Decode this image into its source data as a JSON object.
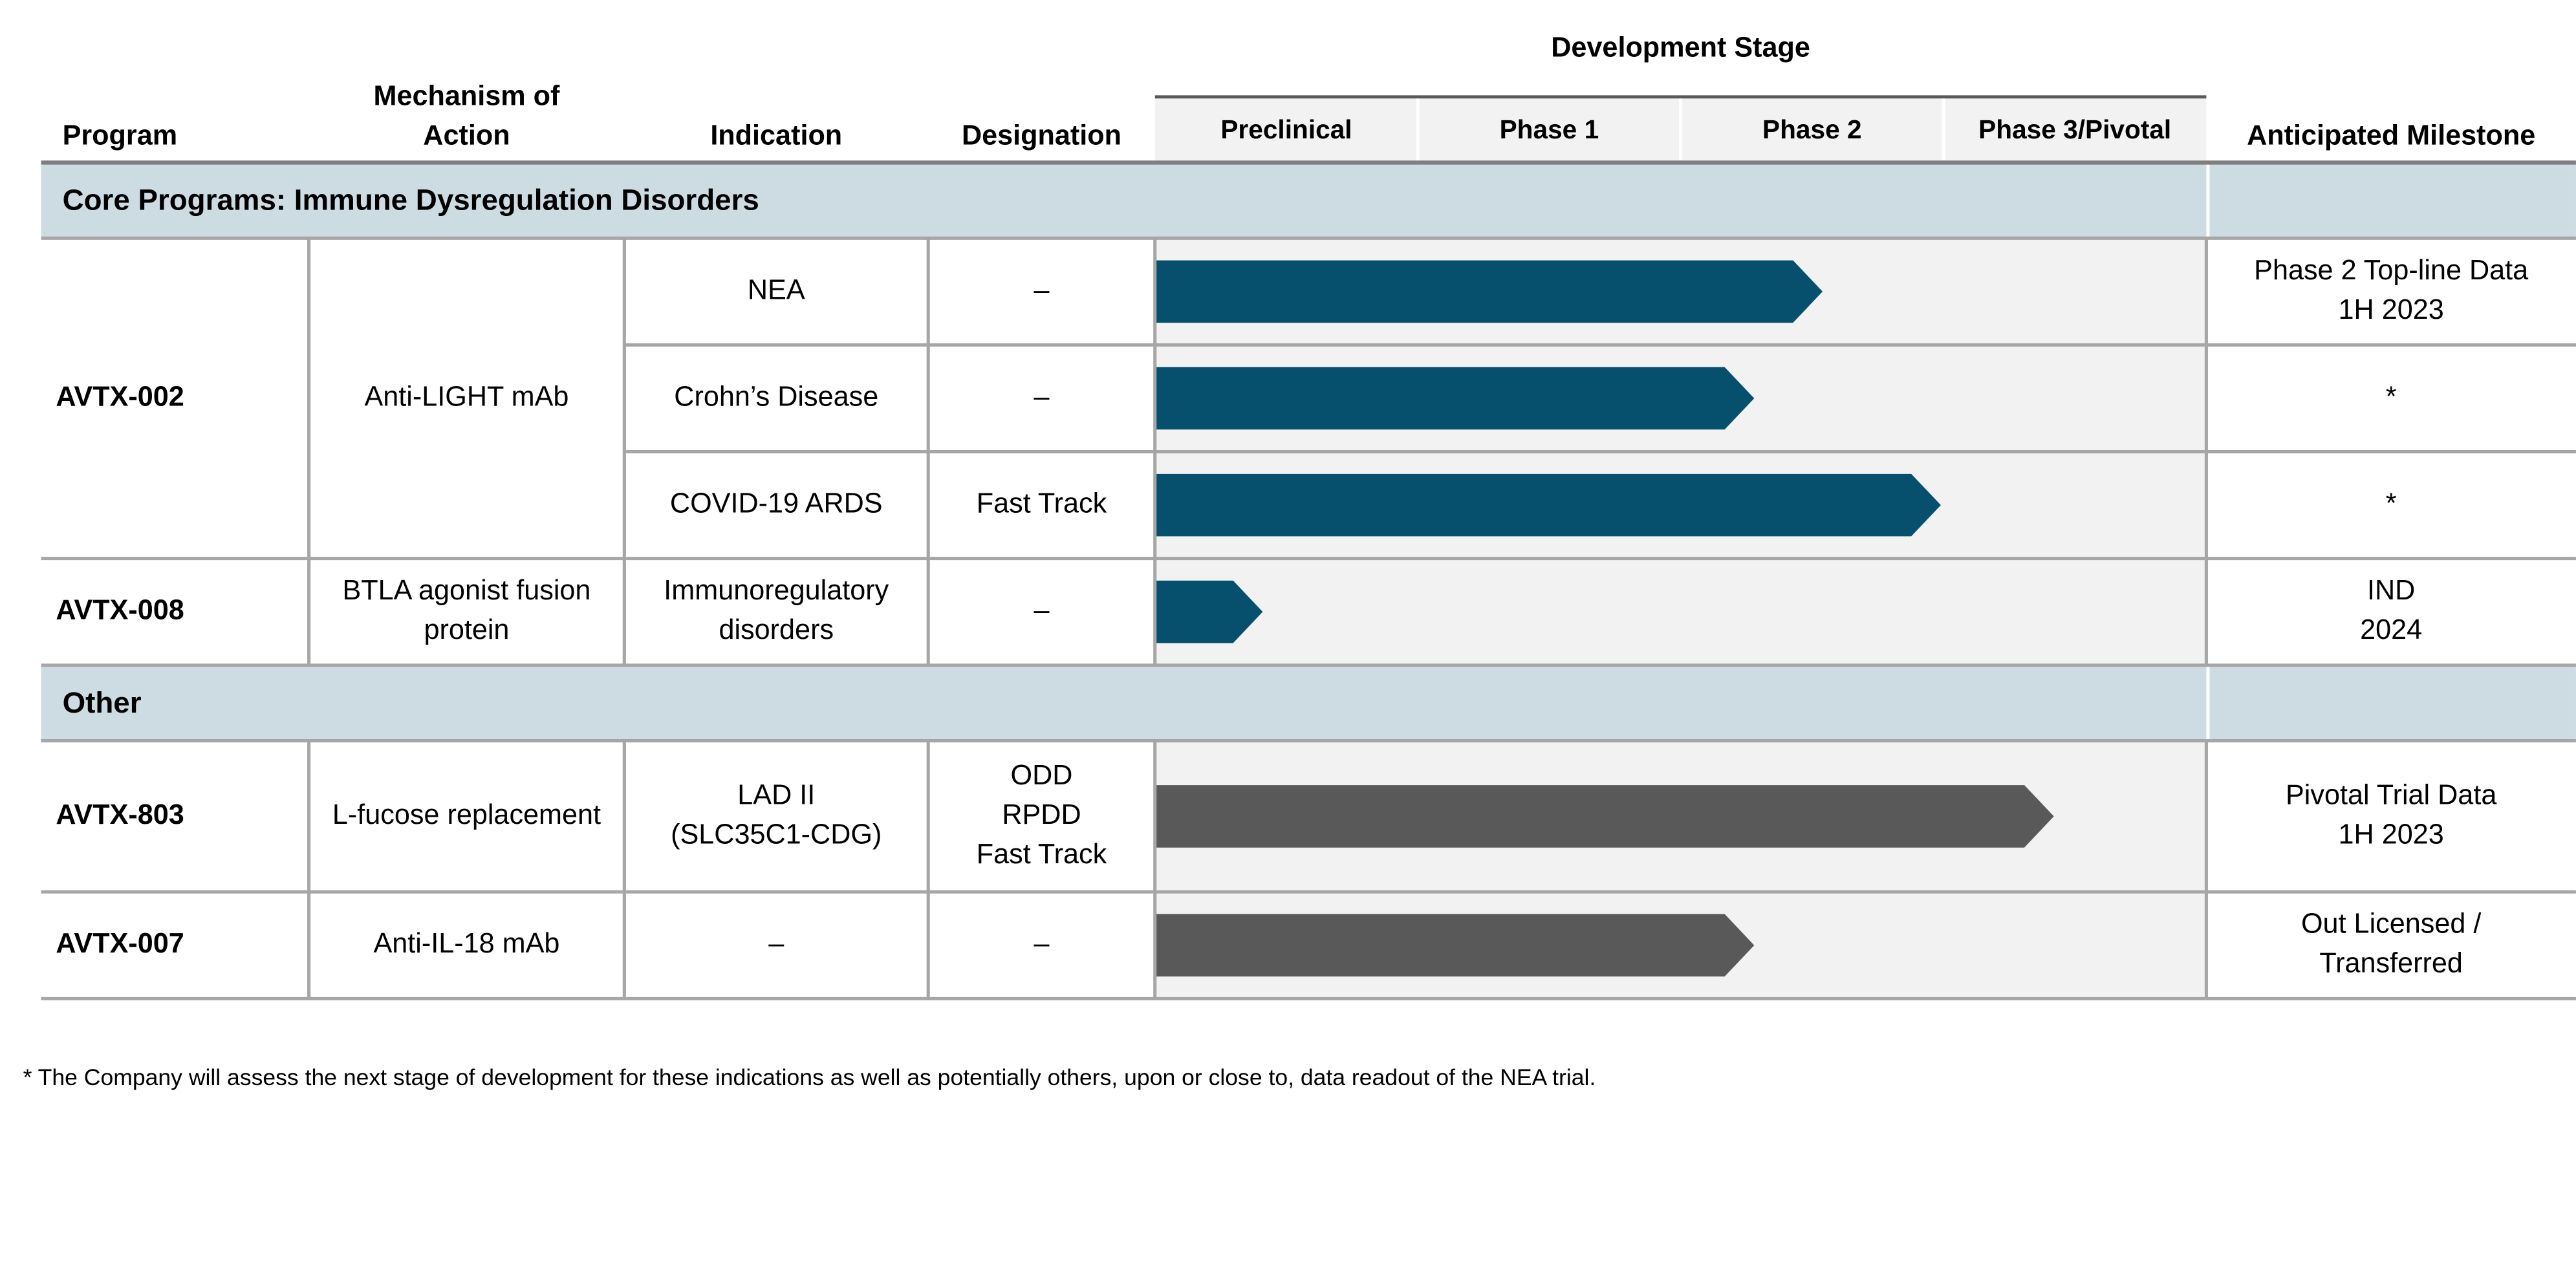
{
  "header": {
    "program": "Program",
    "mechanism": [
      "Mechanism of",
      "Action"
    ],
    "indication": "Indication",
    "designation": "Designation",
    "stage_title": "Development Stage",
    "stages": [
      "Preclinical",
      "Phase 1",
      "Phase 2",
      "Phase 3/Pivotal"
    ],
    "milestone": "Anticipated Milestone"
  },
  "sections": [
    {
      "title": "Core Programs: Immune Dysregulation Disorders",
      "bar_color": "#06506e",
      "programs": [
        {
          "name": "AVTX-002",
          "mechanism": "Anti-LIGHT mAb",
          "rows": [
            {
              "indication": "NEA",
              "designation": "–",
              "progress": 2.54,
              "milestone": [
                "Phase 2 Top-line Data",
                "1H 2023"
              ]
            },
            {
              "indication": "Crohn’s Disease",
              "designation": "–",
              "progress": 2.28,
              "milestone": "*"
            },
            {
              "indication": "COVID-19 ARDS",
              "designation": "Fast Track",
              "progress": 2.99,
              "milestone": "*"
            }
          ]
        },
        {
          "name": "AVTX-008",
          "mechanism": [
            "BTLA agonist fusion",
            "protein"
          ],
          "rows": [
            {
              "indication": [
                "Immunoregulatory",
                "disorders"
              ],
              "designation": "–",
              "progress": 0.41,
              "milestone": [
                "IND",
                "2024"
              ]
            }
          ]
        }
      ]
    },
    {
      "title": "Other",
      "bar_color": "#595959",
      "programs": [
        {
          "name": "AVTX-803",
          "mechanism": "L-fucose replacement",
          "rows": [
            {
              "indication": [
                "LAD II",
                "(SLC35C1-CDG)"
              ],
              "designation": [
                "ODD",
                "RPDD",
                "Fast Track"
              ],
              "progress": 3.42,
              "milestone": [
                "Pivotal Trial Data",
                "1H 2023"
              ]
            }
          ]
        },
        {
          "name": "AVTX-007",
          "mechanism": "Anti-IL-18 mAb",
          "rows": [
            {
              "indication": "–",
              "designation": "–",
              "progress": 2.28,
              "milestone": [
                "Out Licensed /",
                "Transferred"
              ]
            }
          ]
        }
      ]
    }
  ],
  "footnote": "* The Company will assess the next stage of development for these indications as well as potentially others, upon or close to, data readout of the NEA trial."
}
